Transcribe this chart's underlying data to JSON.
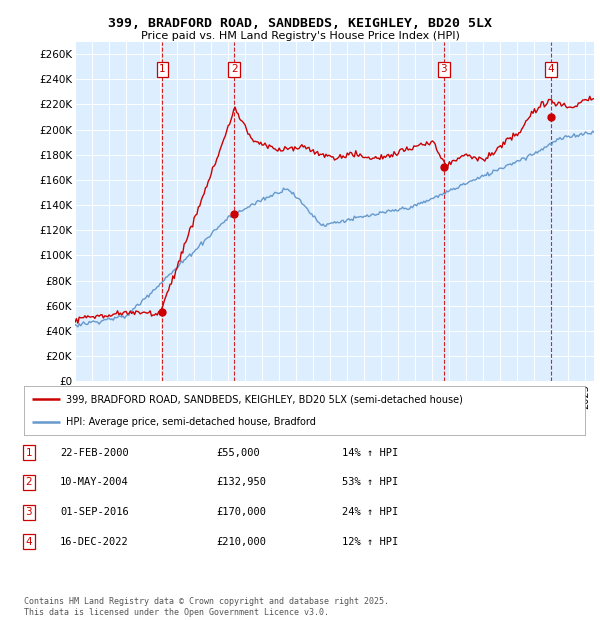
{
  "title": "399, BRADFORD ROAD, SANDBEDS, KEIGHLEY, BD20 5LX",
  "subtitle": "Price paid vs. HM Land Registry's House Price Index (HPI)",
  "ylabel_ticks": [
    "£0",
    "£20K",
    "£40K",
    "£60K",
    "£80K",
    "£100K",
    "£120K",
    "£140K",
    "£160K",
    "£180K",
    "£200K",
    "£220K",
    "£240K",
    "£260K"
  ],
  "ylim": [
    0,
    270000
  ],
  "xlim_start": 1995.0,
  "xlim_end": 2025.5,
  "background_color": "#ffffff",
  "plot_bg_color": "#ddeeff",
  "grid_color": "#ffffff",
  "sale_dates": [
    2000.14,
    2004.36,
    2016.67,
    2022.96
  ],
  "sale_prices": [
    55000,
    132950,
    170000,
    210000
  ],
  "sale_labels": [
    "1",
    "2",
    "3",
    "4"
  ],
  "legend_line1": "399, BRADFORD ROAD, SANDBEDS, KEIGHLEY, BD20 5LX (semi-detached house)",
  "legend_line2": "HPI: Average price, semi-detached house, Bradford",
  "table_data": [
    [
      "1",
      "22-FEB-2000",
      "£55,000",
      "14% ↑ HPI"
    ],
    [
      "2",
      "10-MAY-2004",
      "£132,950",
      "53% ↑ HPI"
    ],
    [
      "3",
      "01-SEP-2016",
      "£170,000",
      "24% ↑ HPI"
    ],
    [
      "4",
      "16-DEC-2022",
      "£210,000",
      "12% ↑ HPI"
    ]
  ],
  "footnote": "Contains HM Land Registry data © Crown copyright and database right 2025.\nThis data is licensed under the Open Government Licence v3.0.",
  "red_color": "#cc0000",
  "blue_color": "#6699cc"
}
